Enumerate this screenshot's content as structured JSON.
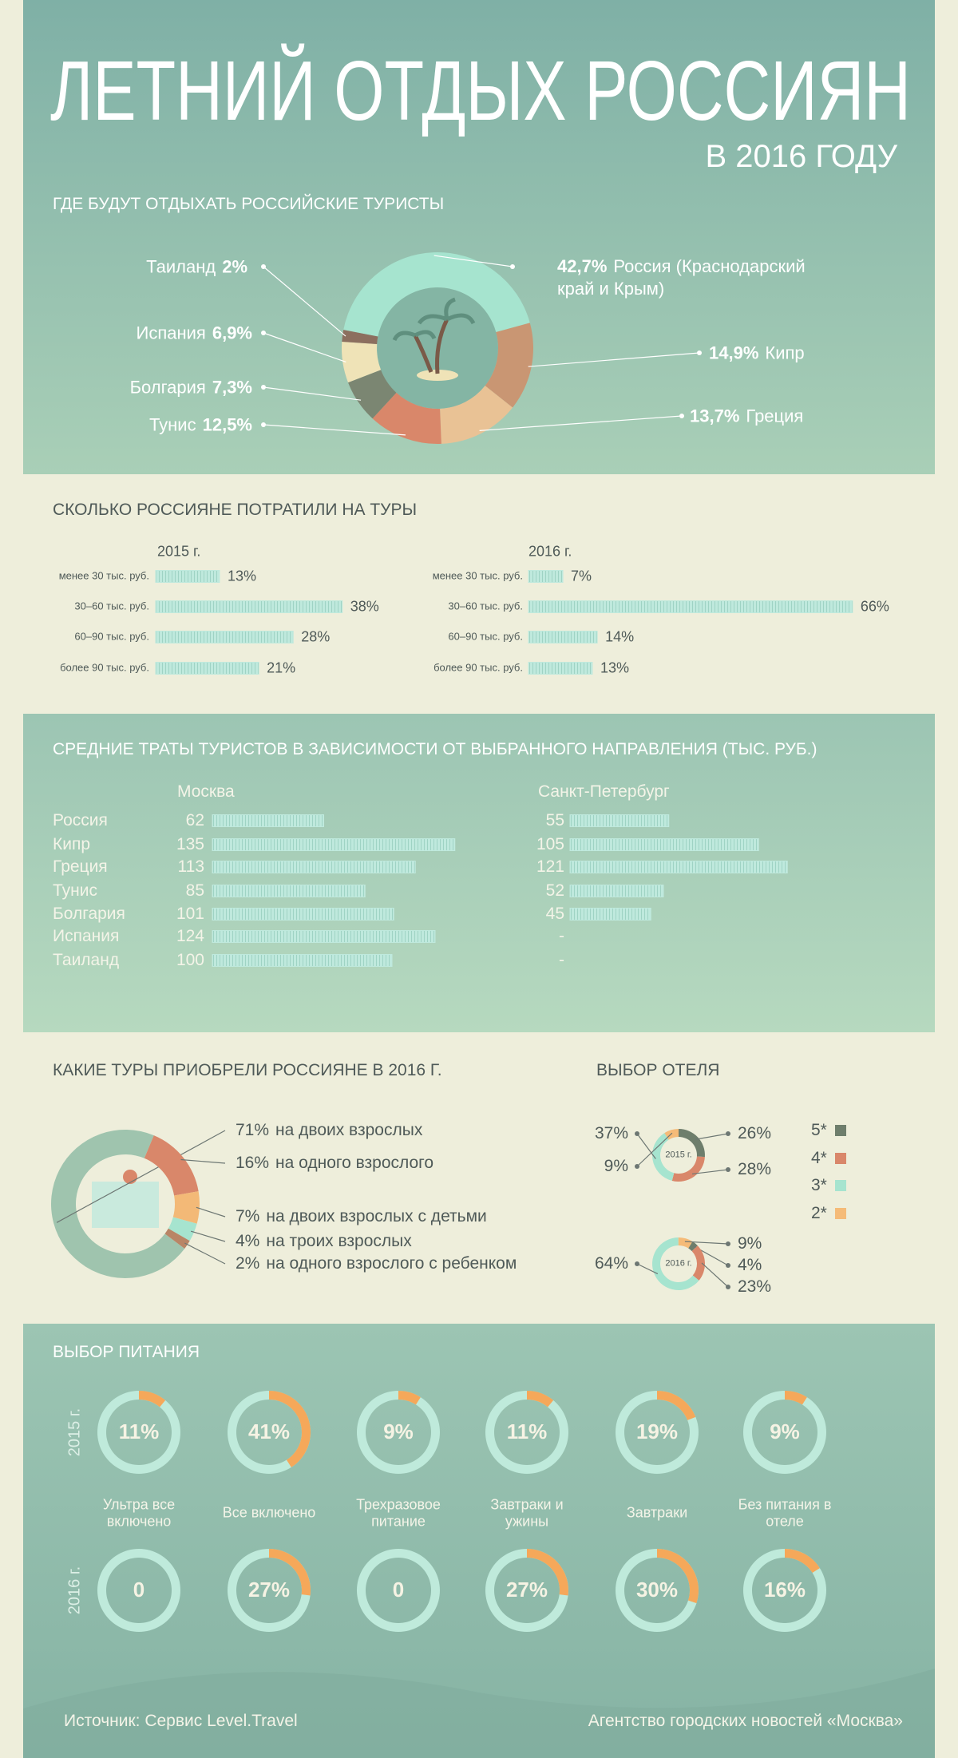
{
  "header": {
    "title": "ЛЕТНИЙ ОТДЫХ РОССИЯН",
    "subtitle": "В 2016 ГОДУ"
  },
  "chart_data": [
    {
      "type": "pie",
      "title": "ГДЕ БУДУТ ОТДЫХАТЬ РОССИЙСКИЕ ТУРИСТЫ",
      "categories": [
        "Россия (Краснодарский край и Крым)",
        "Кипр",
        "Греция",
        "Тунис",
        "Болгария",
        "Испания",
        "Таиланд"
      ],
      "values": [
        42.7,
        14.9,
        13.7,
        12.5,
        7.3,
        6.9,
        2
      ],
      "value_labels": [
        "42,7%",
        "14,9%",
        "13,7%",
        "12,5%",
        "7,3%",
        "6,9%",
        "2%"
      ],
      "colors": [
        "#a6e4cf",
        "#c99673",
        "#e9c295",
        "#d9876a",
        "#7b8672",
        "#efe3b7",
        "#8c6f5f"
      ]
    },
    {
      "type": "bar",
      "title": "СКОЛЬКО РОССИЯНЕ ПОТРАТИЛИ НА ТУРЫ",
      "categories": [
        "менее 30 тыс. руб.",
        "30–60 тыс. руб.",
        "60–90 тыс. руб.",
        "более 90 тыс. руб."
      ],
      "color": "#bfe9dd",
      "series": [
        {
          "name": "2015 г.",
          "values": [
            13,
            38,
            28,
            21
          ],
          "value_labels": [
            "13%",
            "38%",
            "28%",
            "21%"
          ]
        },
        {
          "name": "2016 г.",
          "values": [
            7,
            66,
            14,
            13
          ],
          "value_labels": [
            "7%",
            "66%",
            "14%",
            "13%"
          ]
        }
      ]
    },
    {
      "type": "bar",
      "title": "СРЕДНИЕ ТРАТЫ ТУРИСТОВ В ЗАВИСИМОСТИ ОТ ВЫБРАННОГО НАПРАВЛЕНИЯ (ТЫС. РУБ.)",
      "categories": [
        "Россия",
        "Кипр",
        "Греция",
        "Тунис",
        "Болгария",
        "Испания",
        "Таиланд"
      ],
      "color": "#bfe9dd",
      "series": [
        {
          "name": "Москва",
          "values": [
            62,
            135,
            113,
            85,
            101,
            124,
            100
          ]
        },
        {
          "name": "Санкт-Петербург",
          "values": [
            55,
            105,
            121,
            52,
            45,
            null,
            null
          ],
          "value_labels": [
            "55",
            "105",
            "121",
            "52",
            "45",
            "-",
            "-"
          ]
        }
      ]
    },
    {
      "type": "pie",
      "title": "КАКИЕ ТУРЫ ПРИОБРЕЛИ РОССИЯНЕ В 2016 Г.",
      "categories": [
        "на двоих взрослых",
        "на одного взрослого",
        "на двоих взрослых с детьми",
        "на троих взрослых",
        "на одного взрослого с ребенком"
      ],
      "values": [
        71,
        16,
        7,
        4,
        2
      ],
      "value_labels": [
        "71%",
        "16%",
        "7%",
        "4%",
        "2%"
      ],
      "colors": [
        "#9fc4ae",
        "#d9876a",
        "#f3b977",
        "#a6e4cf",
        "#b98566"
      ]
    },
    {
      "type": "pie",
      "title": "ВЫБОР ОТЕЛЯ",
      "categories": [
        "5*",
        "4*",
        "3*",
        "2*"
      ],
      "colors": [
        "#6e7e6c",
        "#d9876a",
        "#a6e4cf",
        "#f5bb78"
      ],
      "legend": "right",
      "series": [
        {
          "name": "2015 г.",
          "values": [
            26,
            28,
            37,
            9
          ],
          "value_labels": [
            "26%",
            "28%",
            "37%",
            "9%"
          ]
        },
        {
          "name": "2016 г.",
          "values": [
            4,
            23,
            64,
            9
          ],
          "value_labels": [
            "4%",
            "23%",
            "64%",
            "9%"
          ]
        }
      ]
    },
    {
      "type": "donut",
      "title": "ВЫБОР ПИТАНИЯ",
      "categories": [
        "Ультра все включено",
        "Все включено",
        "Трехразовое питание",
        "Завтраки и ужины",
        "Завтраки",
        "Без питания в отеле"
      ],
      "color": "#f5a85a",
      "series": [
        {
          "name": "2015 г.",
          "values": [
            11,
            41,
            9,
            11,
            19,
            9
          ],
          "value_labels": [
            "11%",
            "41%",
            "9%",
            "11%",
            "19%",
            "9%"
          ]
        },
        {
          "name": "2016 г.",
          "values": [
            0,
            27,
            0,
            27,
            30,
            16
          ],
          "value_labels": [
            "0",
            "27%",
            "0",
            "27%",
            "30%",
            "16%"
          ]
        }
      ]
    }
  ],
  "footer": {
    "source": "Источник: Сервис Level.Travel",
    "agency": "Агентство городских новостей «Москва»"
  }
}
